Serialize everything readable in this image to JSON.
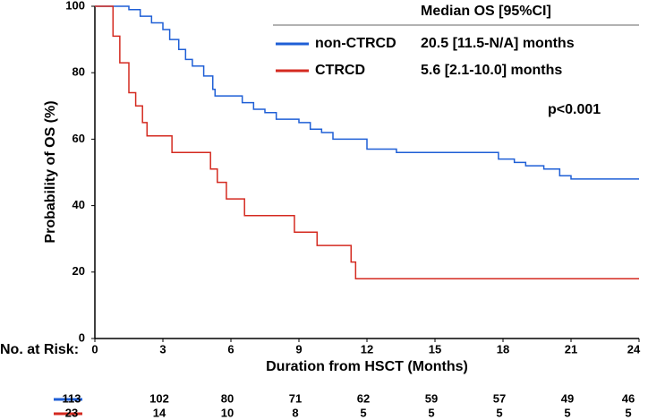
{
  "chart_data": {
    "type": "step",
    "x_label": "Duration from HSCT (Months)",
    "y_label": "Probability of OS (%)",
    "xlim": [
      0,
      24
    ],
    "xticks": [
      0,
      3,
      6,
      9,
      12,
      15,
      18,
      21,
      24
    ],
    "ylim": [
      0,
      100
    ],
    "yticks": [
      0,
      20,
      40,
      60,
      80,
      100
    ],
    "legend_title": "Median OS [95%CI]",
    "annotation": "p<0.001",
    "series": [
      {
        "name": "non-CTRCD",
        "median": "20.5 [11.5-N/A] months",
        "color": "#1f5fd6",
        "x": [
          0,
          1.5,
          2,
          2.5,
          3,
          3.3,
          3.7,
          4,
          4.3,
          4.8,
          5.2,
          5.3,
          6.5,
          7,
          7.5,
          8,
          9,
          9.5,
          10,
          10.5,
          12,
          13.3,
          17.8,
          18.5,
          19,
          19.8,
          20.5,
          21,
          24
        ],
        "values": [
          100,
          99,
          97,
          95,
          93,
          90,
          87,
          84,
          82,
          79,
          75,
          73,
          71,
          69,
          68,
          66,
          65,
          63,
          62,
          60,
          57,
          56,
          54,
          53,
          52,
          51,
          49,
          48,
          48
        ]
      },
      {
        "name": "CTRCD",
        "median": "5.6 [2.1-10.0] months",
        "color": "#d42a20",
        "x": [
          0,
          0.7,
          0.8,
          1.1,
          1.5,
          1.8,
          2.1,
          2.3,
          3.4,
          5.1,
          5.4,
          5.8,
          6.6,
          8.8,
          9.8,
          11.3,
          11.5,
          24
        ],
        "values": [
          100,
          100,
          91,
          83,
          74,
          70,
          65,
          61,
          56,
          51,
          47,
          42,
          37,
          32,
          28,
          23,
          18,
          18
        ]
      }
    ],
    "risk_table": {
      "label": "No. at Risk:",
      "rows": [
        {
          "color": "#1f5fd6",
          "values": [
            113,
            102,
            80,
            71,
            62,
            59,
            57,
            49,
            46
          ]
        },
        {
          "color": "#d42a20",
          "values": [
            23,
            14,
            10,
            8,
            5,
            5,
            5,
            5,
            5
          ]
        }
      ]
    }
  }
}
